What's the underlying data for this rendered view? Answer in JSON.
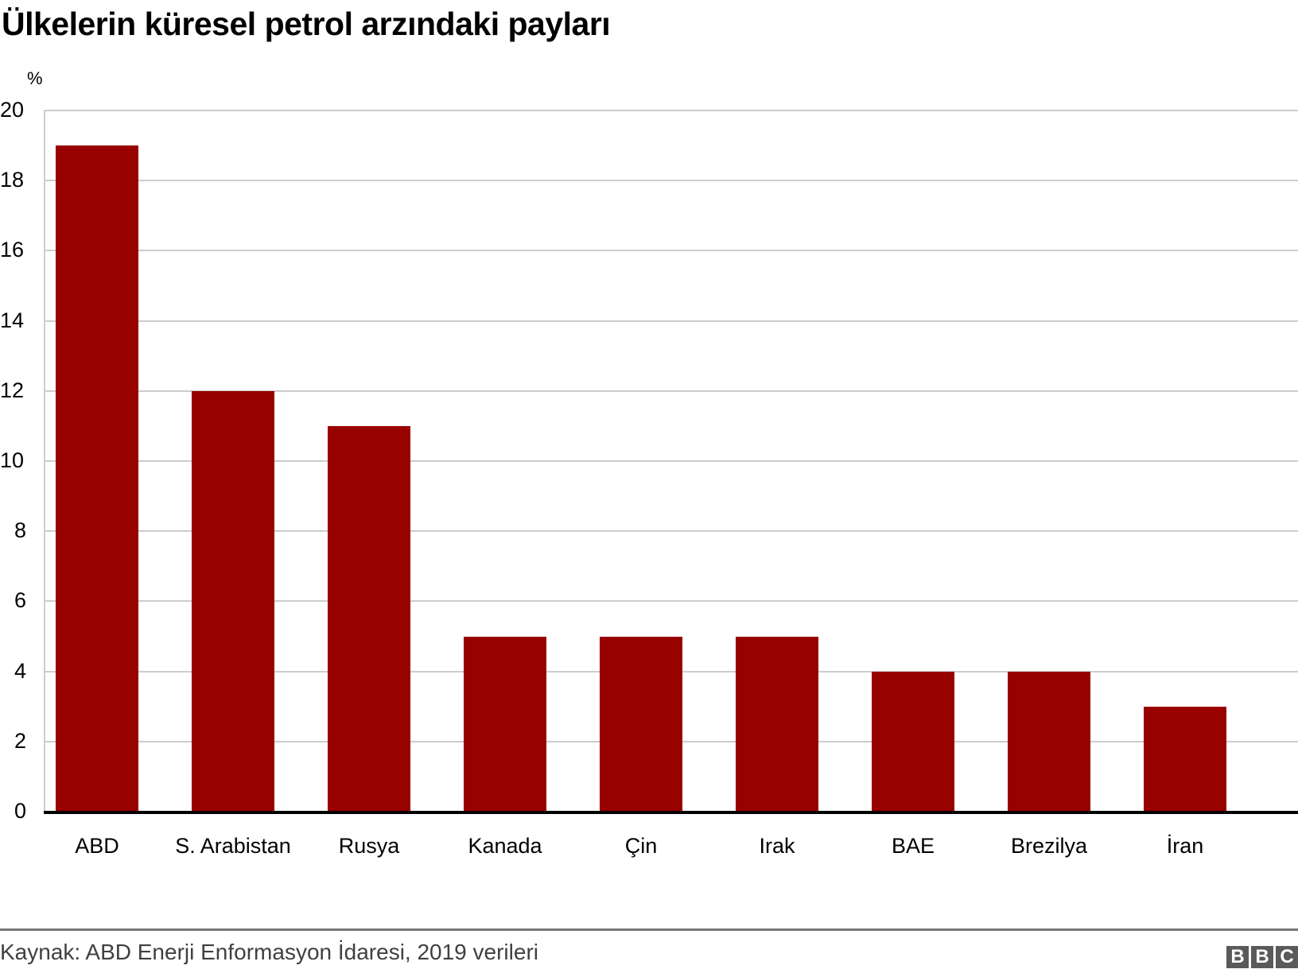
{
  "header": {
    "title": "Ülkelerin küresel petrol arzındaki payları",
    "unit": "%"
  },
  "footer": {
    "source": "Kaynak: ABD Enerji Enformasyon İdaresi, 2019 verileri",
    "logo": [
      "B",
      "B",
      "C"
    ]
  },
  "colors": {
    "bar": "#990000",
    "grid": "#cccccc",
    "baseline": "#000000"
  },
  "chart_data": {
    "type": "bar",
    "title": "Ülkelerin küresel petrol arzındaki payları",
    "xlabel": "",
    "ylabel": "%",
    "categories": [
      "ABD",
      "S. Arabistan",
      "Rusya",
      "Kanada",
      "Çin",
      "Irak",
      "BAE",
      "Brezilya",
      "İran"
    ],
    "values": [
      19,
      12,
      11,
      5,
      5,
      5,
      4,
      4,
      3
    ],
    "ylim": [
      0,
      20
    ],
    "yticks": [
      0,
      2,
      4,
      6,
      8,
      10,
      12,
      14,
      16,
      18,
      20
    ],
    "grid": true,
    "legend": null,
    "source": "Kaynak: ABD Enerji Enformasyon İdaresi, 2019 verileri"
  }
}
